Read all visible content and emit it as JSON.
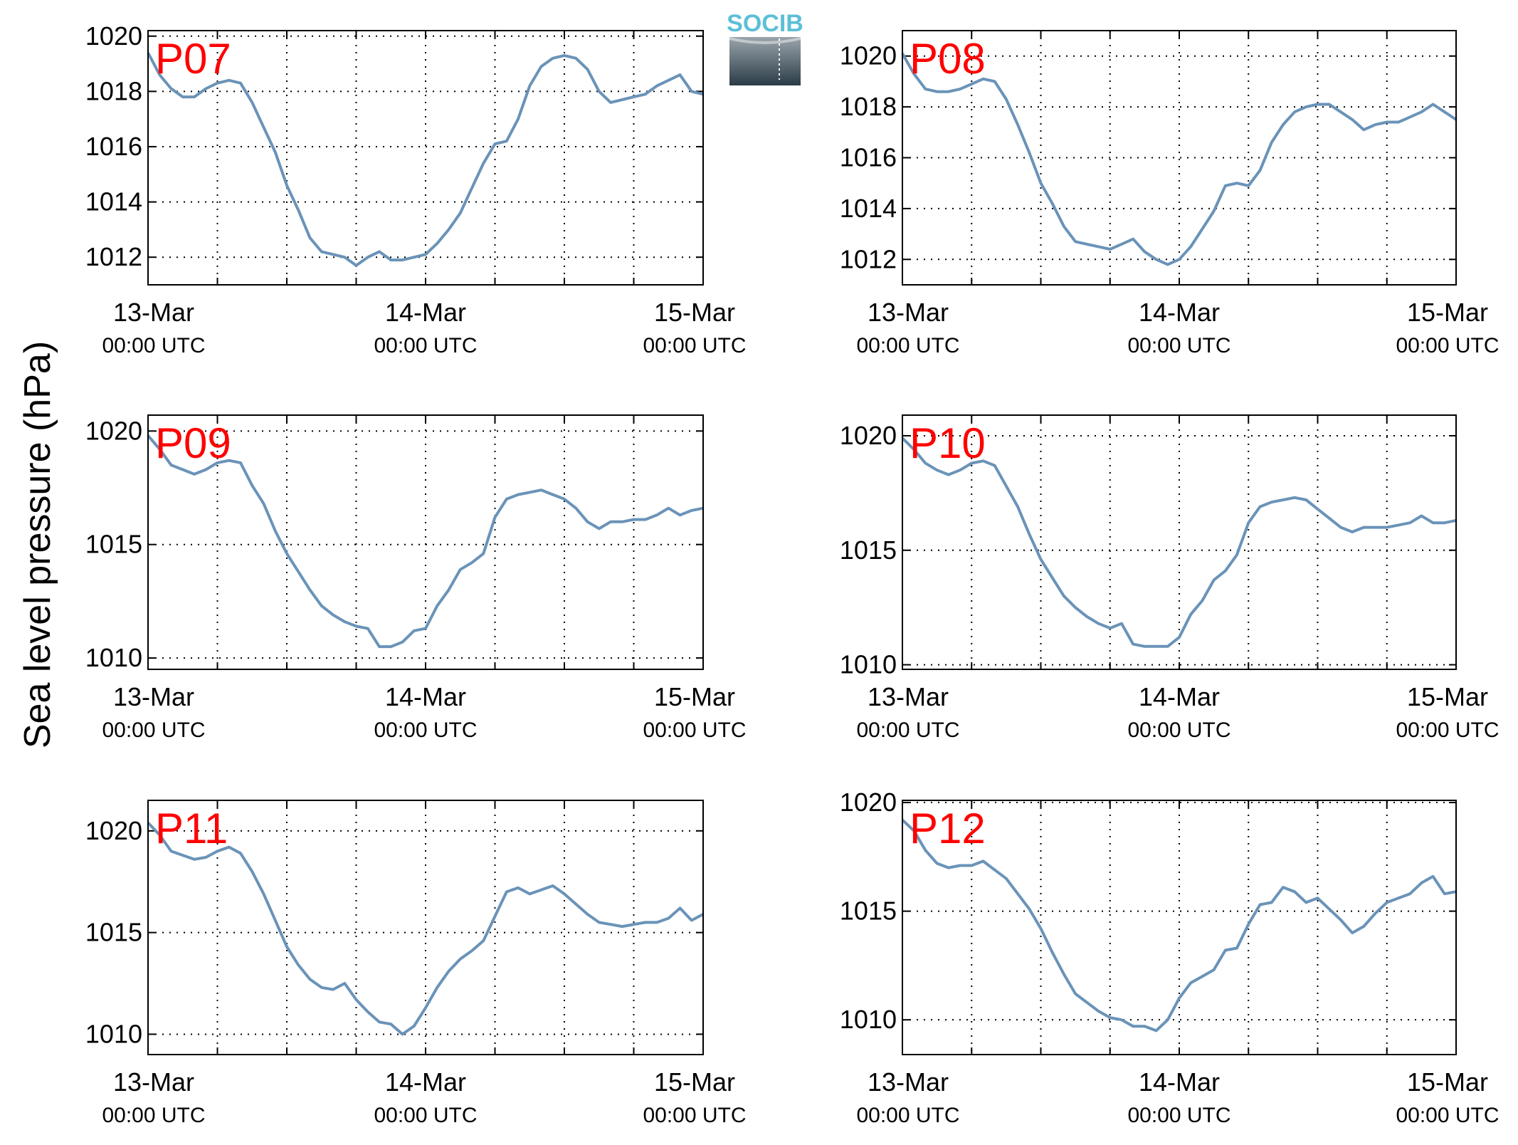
{
  "figure": {
    "ylabel": "Sea level pressure (hPa)",
    "logo_text": "SOCIB"
  },
  "colors": {
    "line": "#6a93b8",
    "label": "#ff0000",
    "grid": "#000000",
    "logo_text": "#5cbfd6",
    "logo_top": "#9aa4ab",
    "logo_bottom": "#2b3c47"
  },
  "chart_data": [
    {
      "type": "line",
      "panel_label": "P07",
      "x_range_hours": [
        0,
        48
      ],
      "ylim": [
        1011,
        1020.2
      ],
      "yticks": [
        1012,
        1014,
        1016,
        1018,
        1020
      ],
      "x_ticks": [
        {
          "hour": 0,
          "date": "13-Mar",
          "time": "00:00 UTC"
        },
        {
          "hour": 24,
          "date": "14-Mar",
          "time": "00:00 UTC"
        },
        {
          "hour": 48,
          "date": "15-Mar",
          "time": "00:00 UTC"
        }
      ],
      "x": [
        0,
        1,
        2,
        3,
        4,
        5,
        6,
        7,
        8,
        9,
        10,
        11,
        12,
        13,
        14,
        15,
        16,
        17,
        18,
        19,
        20,
        21,
        22,
        23,
        24,
        25,
        26,
        27,
        28,
        29,
        30,
        31,
        32,
        33,
        34,
        35,
        36,
        37,
        38,
        39,
        40,
        41,
        42,
        43,
        44,
        45,
        46,
        47,
        48
      ],
      "y": [
        1019.4,
        1018.6,
        1018.1,
        1017.8,
        1017.8,
        1018.1,
        1018.3,
        1018.4,
        1018.3,
        1017.6,
        1016.7,
        1015.8,
        1014.6,
        1013.7,
        1012.7,
        1012.2,
        1012.1,
        1012.0,
        1011.7,
        1012.0,
        1012.2,
        1011.9,
        1011.9,
        1012.0,
        1012.1,
        1012.5,
        1013.0,
        1013.6,
        1014.5,
        1015.4,
        1016.1,
        1016.2,
        1017.0,
        1018.2,
        1018.9,
        1019.2,
        1019.3,
        1019.2,
        1018.8,
        1018.0,
        1017.6,
        1017.7,
        1017.8,
        1017.9,
        1018.2,
        1018.4,
        1018.6,
        1018.0,
        1017.9
      ]
    },
    {
      "type": "line",
      "panel_label": "P08",
      "x_range_hours": [
        0,
        48
      ],
      "ylim": [
        1011,
        1021
      ],
      "yticks": [
        1012,
        1014,
        1016,
        1018,
        1020
      ],
      "x_ticks": [
        {
          "hour": 0,
          "date": "13-Mar",
          "time": "00:00 UTC"
        },
        {
          "hour": 24,
          "date": "14-Mar",
          "time": "00:00 UTC"
        },
        {
          "hour": 48,
          "date": "15-Mar",
          "time": "00:00 UTC"
        }
      ],
      "x": [
        0,
        1,
        2,
        3,
        4,
        5,
        6,
        7,
        8,
        9,
        10,
        11,
        12,
        13,
        14,
        15,
        16,
        17,
        18,
        19,
        20,
        21,
        22,
        23,
        24,
        25,
        26,
        27,
        28,
        29,
        30,
        31,
        32,
        33,
        34,
        35,
        36,
        37,
        38,
        39,
        40,
        41,
        42,
        43,
        44,
        45,
        46,
        47,
        48
      ],
      "y": [
        1020.1,
        1019.3,
        1018.7,
        1018.6,
        1018.6,
        1018.7,
        1018.9,
        1019.1,
        1019.0,
        1018.3,
        1017.3,
        1016.2,
        1015.0,
        1014.2,
        1013.3,
        1012.7,
        1012.6,
        1012.5,
        1012.4,
        1012.6,
        1012.8,
        1012.3,
        1012.0,
        1011.8,
        1012.0,
        1012.5,
        1013.2,
        1013.9,
        1014.9,
        1015.0,
        1014.9,
        1015.5,
        1016.6,
        1017.3,
        1017.8,
        1018.0,
        1018.1,
        1018.1,
        1017.8,
        1017.5,
        1017.1,
        1017.3,
        1017.4,
        1017.4,
        1017.6,
        1017.8,
        1018.1,
        1017.8,
        1017.5
      ]
    },
    {
      "type": "line",
      "panel_label": "P09",
      "x_range_hours": [
        0,
        48
      ],
      "ylim": [
        1009.5,
        1020.7
      ],
      "yticks": [
        1010,
        1015,
        1020
      ],
      "x_ticks": [
        {
          "hour": 0,
          "date": "13-Mar",
          "time": "00:00 UTC"
        },
        {
          "hour": 24,
          "date": "14-Mar",
          "time": "00:00 UTC"
        },
        {
          "hour": 48,
          "date": "15-Mar",
          "time": "00:00 UTC"
        }
      ],
      "x": [
        0,
        1,
        2,
        3,
        4,
        5,
        6,
        7,
        8,
        9,
        10,
        11,
        12,
        13,
        14,
        15,
        16,
        17,
        18,
        19,
        20,
        21,
        22,
        23,
        24,
        25,
        26,
        27,
        28,
        29,
        30,
        31,
        32,
        33,
        34,
        35,
        36,
        37,
        38,
        39,
        40,
        41,
        42,
        43,
        44,
        45,
        46,
        47,
        48
      ],
      "y": [
        1019.8,
        1019.2,
        1018.5,
        1018.3,
        1018.1,
        1018.3,
        1018.6,
        1018.7,
        1018.6,
        1017.6,
        1016.8,
        1015.6,
        1014.6,
        1013.8,
        1013.0,
        1012.3,
        1011.9,
        1011.6,
        1011.4,
        1011.3,
        1010.5,
        1010.5,
        1010.7,
        1011.2,
        1011.3,
        1012.3,
        1013.0,
        1013.9,
        1014.2,
        1014.6,
        1016.2,
        1017.0,
        1017.2,
        1017.3,
        1017.4,
        1017.2,
        1017.0,
        1016.6,
        1016.0,
        1015.7,
        1016.0,
        1016.0,
        1016.1,
        1016.1,
        1016.3,
        1016.6,
        1016.3,
        1016.5,
        1016.6
      ]
    },
    {
      "type": "line",
      "panel_label": "P10",
      "x_range_hours": [
        0,
        48
      ],
      "ylim": [
        1009.8,
        1020.9
      ],
      "yticks": [
        1010,
        1015,
        1020
      ],
      "x_ticks": [
        {
          "hour": 0,
          "date": "13-Mar",
          "time": "00:00 UTC"
        },
        {
          "hour": 24,
          "date": "14-Mar",
          "time": "00:00 UTC"
        },
        {
          "hour": 48,
          "date": "15-Mar",
          "time": "00:00 UTC"
        }
      ],
      "x": [
        0,
        1,
        2,
        3,
        4,
        5,
        6,
        7,
        8,
        9,
        10,
        11,
        12,
        13,
        14,
        15,
        16,
        17,
        18,
        19,
        20,
        21,
        22,
        23,
        24,
        25,
        26,
        27,
        28,
        29,
        30,
        31,
        32,
        33,
        34,
        35,
        36,
        37,
        38,
        39,
        40,
        41,
        42,
        43,
        44,
        45,
        46,
        47,
        48
      ],
      "y": [
        1019.9,
        1019.4,
        1018.8,
        1018.5,
        1018.3,
        1018.5,
        1018.8,
        1018.9,
        1018.7,
        1017.8,
        1016.9,
        1015.7,
        1014.6,
        1013.8,
        1013.0,
        1012.5,
        1012.1,
        1011.8,
        1011.6,
        1011.8,
        1010.9,
        1010.8,
        1010.8,
        1010.8,
        1011.2,
        1012.2,
        1012.8,
        1013.7,
        1014.1,
        1014.8,
        1016.2,
        1016.9,
        1017.1,
        1017.2,
        1017.3,
        1017.2,
        1016.8,
        1016.4,
        1016.0,
        1015.8,
        1016.0,
        1016.0,
        1016.0,
        1016.1,
        1016.2,
        1016.5,
        1016.2,
        1016.2,
        1016.3
      ]
    },
    {
      "type": "line",
      "panel_label": "P11",
      "x_range_hours": [
        0,
        48
      ],
      "ylim": [
        1009,
        1021.5
      ],
      "yticks": [
        1010,
        1015,
        1020
      ],
      "x_ticks": [
        {
          "hour": 0,
          "date": "13-Mar",
          "time": "00:00 UTC"
        },
        {
          "hour": 24,
          "date": "14-Mar",
          "time": "00:00 UTC"
        },
        {
          "hour": 48,
          "date": "15-Mar",
          "time": "00:00 UTC"
        }
      ],
      "x": [
        0,
        1,
        2,
        3,
        4,
        5,
        6,
        7,
        8,
        9,
        10,
        11,
        12,
        13,
        14,
        15,
        16,
        17,
        18,
        19,
        20,
        21,
        22,
        23,
        24,
        25,
        26,
        27,
        28,
        29,
        30,
        31,
        32,
        33,
        34,
        35,
        36,
        37,
        38,
        39,
        40,
        41,
        42,
        43,
        44,
        45,
        46,
        47,
        48
      ],
      "y": [
        1020.4,
        1019.8,
        1019.0,
        1018.8,
        1018.6,
        1018.7,
        1019.0,
        1019.2,
        1018.9,
        1018.0,
        1016.9,
        1015.6,
        1014.3,
        1013.4,
        1012.7,
        1012.3,
        1012.2,
        1012.5,
        1011.7,
        1011.1,
        1010.6,
        1010.5,
        1010.0,
        1010.4,
        1011.3,
        1012.3,
        1013.1,
        1013.7,
        1014.1,
        1014.6,
        1015.8,
        1017.0,
        1017.2,
        1016.9,
        1017.1,
        1017.3,
        1016.9,
        1016.4,
        1015.9,
        1015.5,
        1015.4,
        1015.3,
        1015.4,
        1015.5,
        1015.5,
        1015.7,
        1016.2,
        1015.6,
        1015.9
      ]
    },
    {
      "type": "line",
      "panel_label": "P12",
      "x_range_hours": [
        0,
        48
      ],
      "ylim": [
        1008.4,
        1020.1
      ],
      "yticks": [
        1010,
        1015,
        1020
      ],
      "x_ticks": [
        {
          "hour": 0,
          "date": "13-Mar",
          "time": "00:00 UTC"
        },
        {
          "hour": 24,
          "date": "14-Mar",
          "time": "00:00 UTC"
        },
        {
          "hour": 48,
          "date": "15-Mar",
          "time": "00:00 UTC"
        }
      ],
      "x": [
        0,
        1,
        2,
        3,
        4,
        5,
        6,
        7,
        8,
        9,
        10,
        11,
        12,
        13,
        14,
        15,
        16,
        17,
        18,
        19,
        20,
        21,
        22,
        23,
        24,
        25,
        26,
        27,
        28,
        29,
        30,
        31,
        32,
        33,
        34,
        35,
        36,
        37,
        38,
        39,
        40,
        41,
        42,
        43,
        44,
        45,
        46,
        47,
        48
      ],
      "y": [
        1019.2,
        1018.7,
        1017.8,
        1017.2,
        1017.0,
        1017.1,
        1017.1,
        1017.3,
        1016.9,
        1016.5,
        1015.8,
        1015.1,
        1014.2,
        1013.1,
        1012.1,
        1011.2,
        1010.8,
        1010.4,
        1010.1,
        1010.0,
        1009.7,
        1009.7,
        1009.5,
        1010.0,
        1011.0,
        1011.7,
        1012.0,
        1012.3,
        1013.2,
        1013.3,
        1014.4,
        1015.3,
        1015.4,
        1016.1,
        1015.9,
        1015.4,
        1015.6,
        1015.1,
        1014.6,
        1014.0,
        1014.3,
        1014.9,
        1015.4,
        1015.6,
        1015.8,
        1016.3,
        1016.6,
        1015.8,
        1015.9
      ]
    }
  ]
}
